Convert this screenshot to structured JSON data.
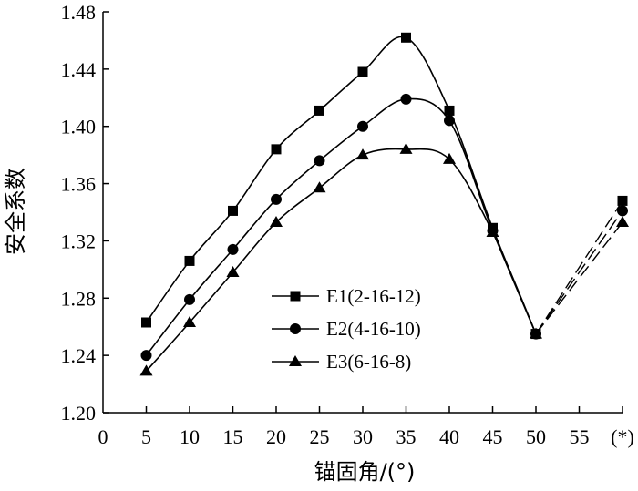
{
  "chart_data": {
    "type": "line",
    "title": "",
    "xlabel": "锚固角/(°)",
    "ylabel": "安全系数",
    "x_ticks": [
      "0",
      "5",
      "10",
      "15",
      "20",
      "25",
      "30",
      "35",
      "40",
      "45",
      "50",
      "55",
      "(*)"
    ],
    "y_ticks": [
      "1.20",
      "1.24",
      "1.28",
      "1.32",
      "1.36",
      "1.40",
      "1.44",
      "1.48"
    ],
    "xlim": [
      0,
      60
    ],
    "ylim": [
      1.2,
      1.48
    ],
    "grid": false,
    "legend_position": "center",
    "x": [
      5,
      10,
      15,
      20,
      25,
      30,
      35,
      40,
      45,
      50
    ],
    "special_x_label": "(*)",
    "series": [
      {
        "name": "E1(2-16-12)",
        "marker": "square",
        "values": [
          1.263,
          1.306,
          1.341,
          1.384,
          1.411,
          1.438,
          1.462,
          1.411,
          1.329,
          1.255
        ],
        "special_value": 1.348
      },
      {
        "name": "E2(4-16-10)",
        "marker": "circle",
        "values": [
          1.24,
          1.279,
          1.314,
          1.349,
          1.376,
          1.4,
          1.419,
          1.404,
          1.327,
          1.255
        ],
        "special_value": 1.341
      },
      {
        "name": "E3(6-16-8)",
        "marker": "triangle",
        "values": [
          1.229,
          1.263,
          1.298,
          1.333,
          1.357,
          1.38,
          1.384,
          1.377,
          1.326,
          1.255
        ],
        "special_value": 1.333
      }
    ]
  }
}
